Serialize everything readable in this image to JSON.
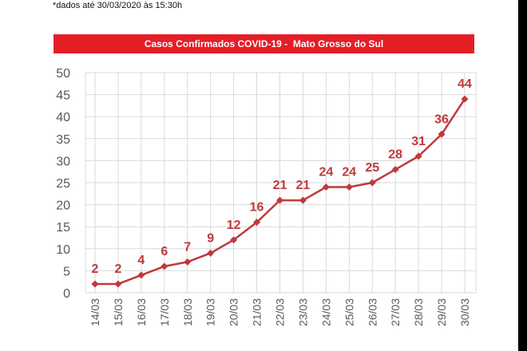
{
  "footnote": "*dados até 30/03/2020 às 15:30h",
  "colors": {
    "title_bg": "#e41e26",
    "series": "#c0393b",
    "grid": "#d9d9d9",
    "axis_text": "#595959"
  },
  "chart_data": {
    "type": "line",
    "title": "Casos Confirmados COVID-19 -  Mato Grosso do Sul",
    "xlabel": "",
    "ylabel": "",
    "ylim": [
      0,
      50
    ],
    "yticks": [
      0,
      5,
      10,
      15,
      20,
      25,
      30,
      35,
      40,
      45,
      50
    ],
    "grid": true,
    "legend": "none",
    "marker": "diamond",
    "x": [
      "14/03",
      "15/03",
      "16/03",
      "17/03",
      "18/03",
      "19/03",
      "20/03",
      "21/03",
      "22/03",
      "23/03",
      "24/03",
      "25/03",
      "26/03",
      "27/03",
      "28/03",
      "29/03",
      "30/03"
    ],
    "series": [
      {
        "values": [
          2,
          2,
          4,
          6,
          7,
          9,
          12,
          16,
          21,
          21,
          24,
          24,
          25,
          28,
          31,
          36,
          44
        ]
      }
    ]
  }
}
